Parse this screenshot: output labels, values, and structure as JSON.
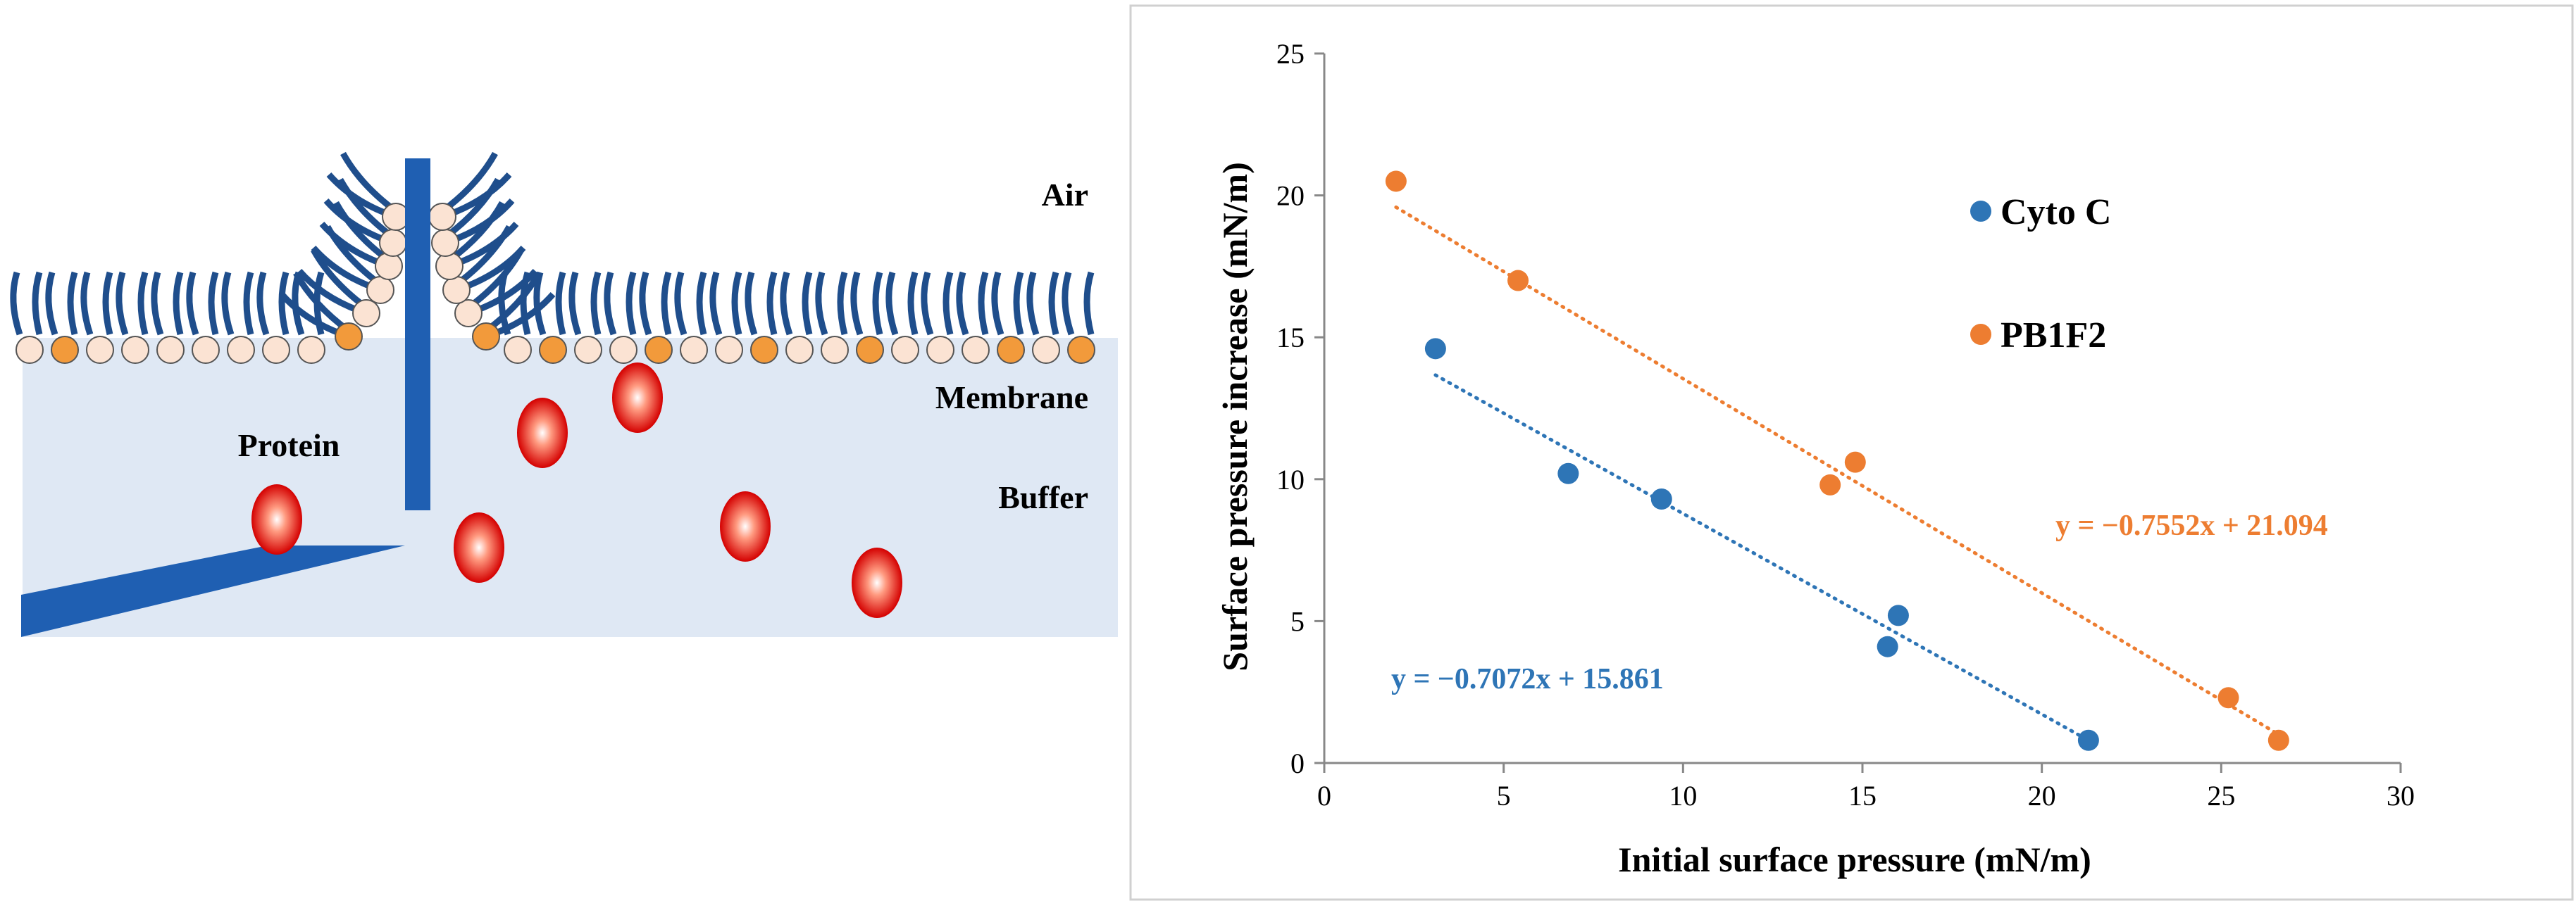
{
  "diagram": {
    "labels": {
      "air": "Air",
      "membrane": "Membrane",
      "buffer": "Buffer",
      "protein": "Protein"
    },
    "colors": {
      "lipid_tail": "#1f4e8c",
      "lipid_head": "#fbe3d3",
      "lipid_head_charged": "#f29a3b",
      "buffer": "#dfe8f4",
      "probe": "#1f5fb2",
      "protein_core": "#ffffff",
      "protein_edge": "#d40000"
    }
  },
  "chart_data": {
    "type": "scatter",
    "xlabel": "Initial surface pressure (mN/m)",
    "ylabel": "Surface pressure increase (mN/m)",
    "xlim": [
      0,
      30
    ],
    "ylim": [
      0,
      25
    ],
    "xticks": [
      "0",
      "5",
      "10",
      "15",
      "20",
      "25",
      "30"
    ],
    "yticks": [
      "0",
      "5",
      "10",
      "15",
      "20",
      "25"
    ],
    "series": [
      {
        "name": "Cyto C",
        "color": "#2e75b6",
        "points": [
          [
            3.1,
            14.6
          ],
          [
            6.8,
            10.2
          ],
          [
            9.4,
            9.3
          ],
          [
            15.7,
            4.1
          ],
          [
            16.0,
            5.2
          ],
          [
            21.3,
            0.8
          ]
        ],
        "trendline": {
          "slope": -0.7072,
          "intercept": 15.861,
          "x_range": [
            3.1,
            21.3
          ]
        },
        "equation": "y = −0.7072x + 15.861"
      },
      {
        "name": "PB1F2",
        "color": "#ed7d31",
        "points": [
          [
            2.0,
            20.5
          ],
          [
            5.4,
            17.0
          ],
          [
            14.1,
            9.8
          ],
          [
            14.8,
            10.6
          ],
          [
            25.2,
            2.3
          ],
          [
            26.6,
            0.8
          ]
        ],
        "trendline": {
          "slope": -0.7552,
          "intercept": 21.094,
          "x_range": [
            2.0,
            26.6
          ]
        },
        "equation": "y = −0.7552x + 21.094"
      }
    ]
  }
}
